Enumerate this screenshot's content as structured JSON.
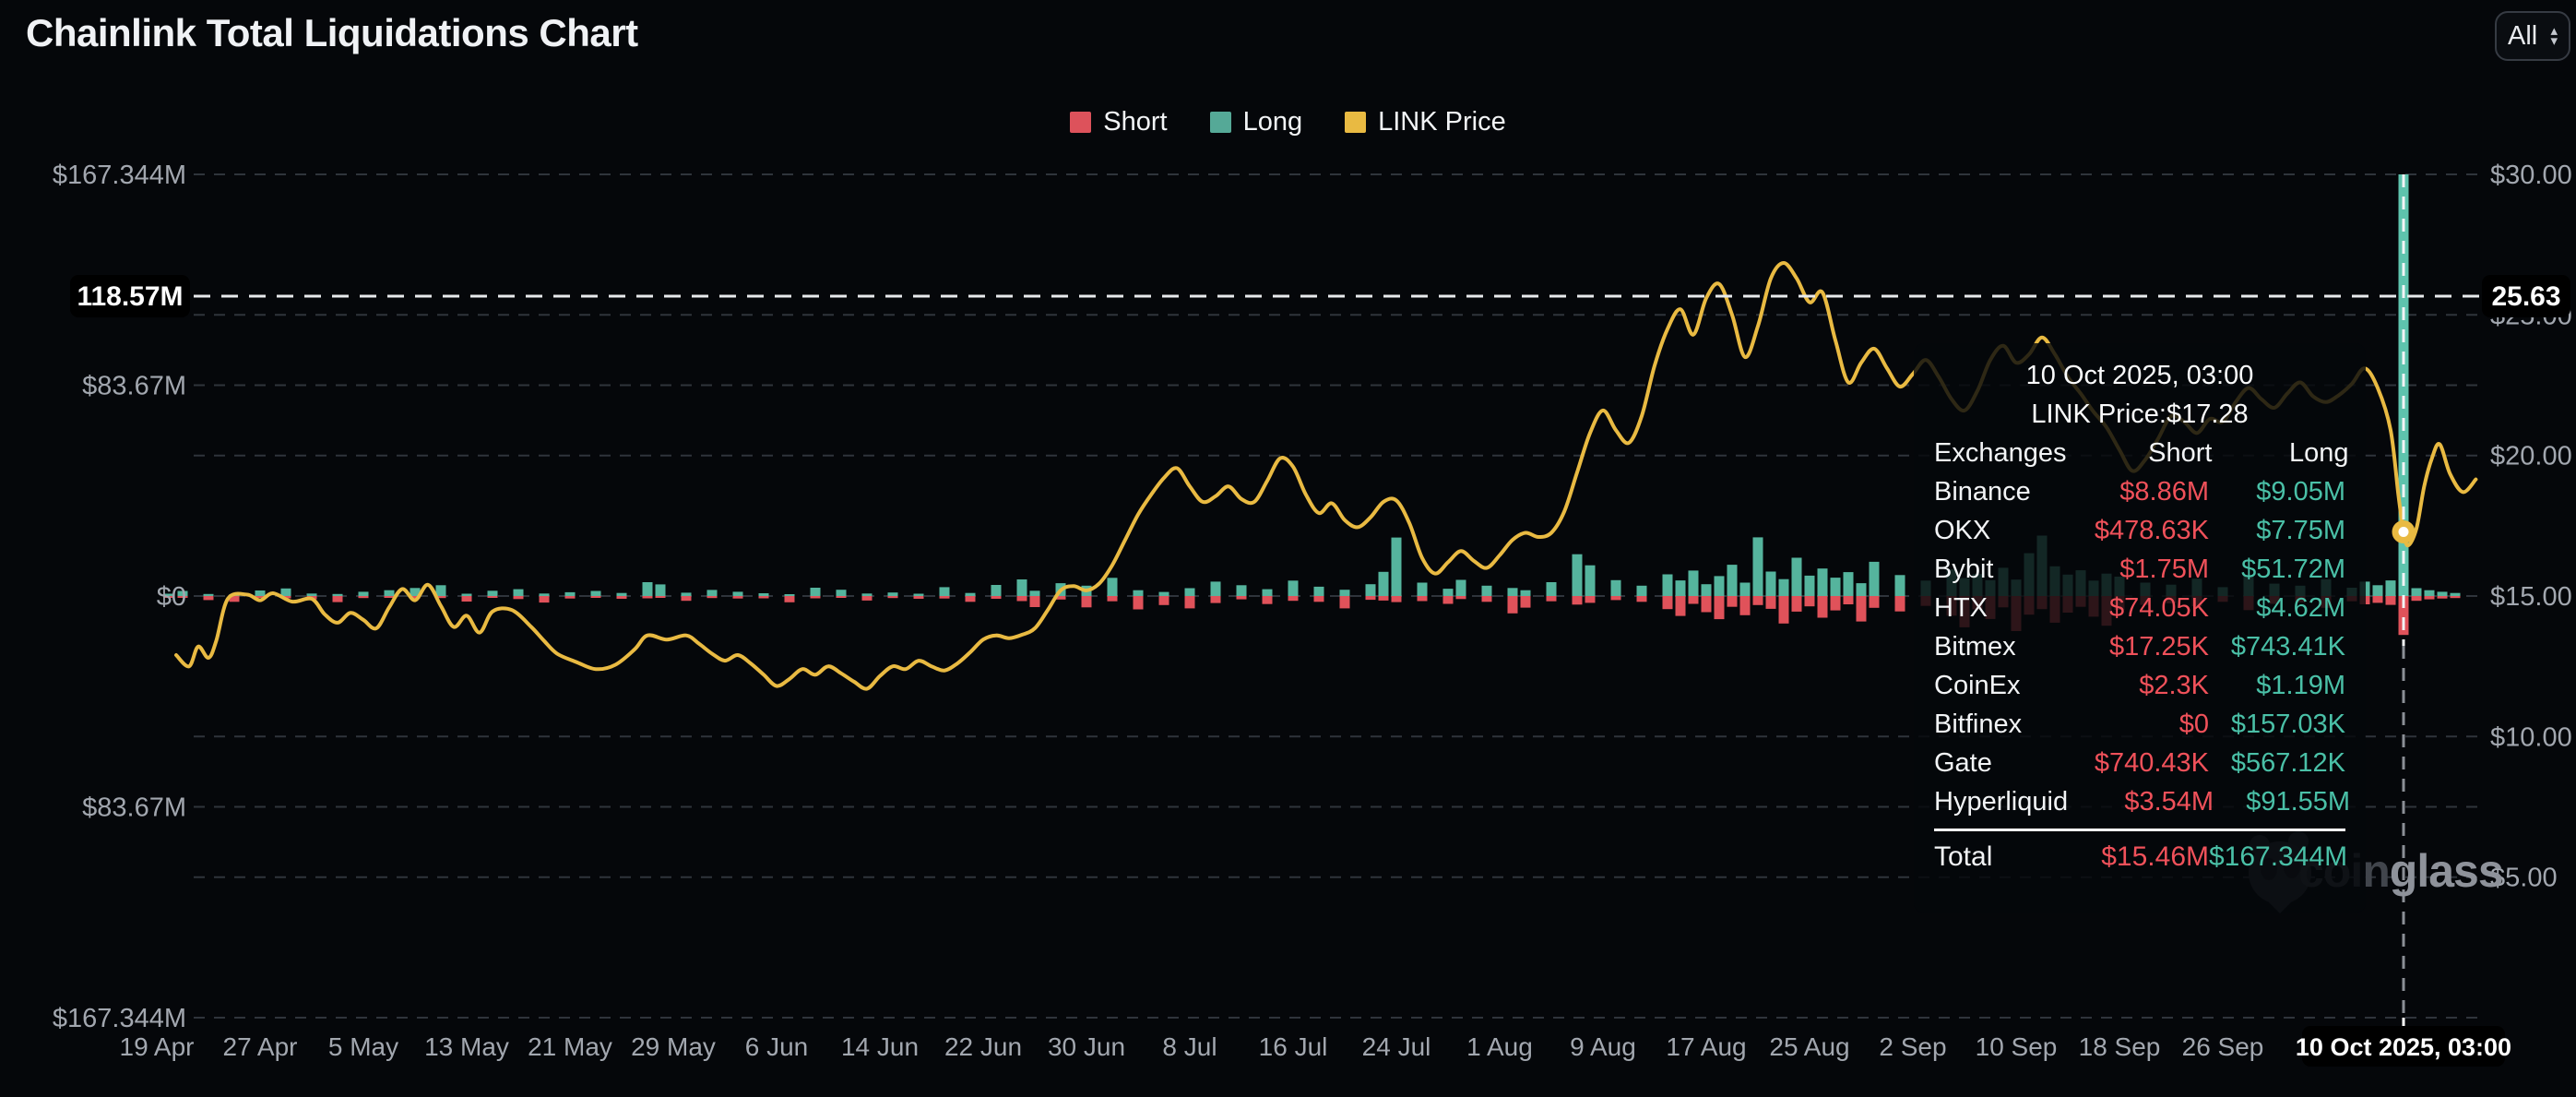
{
  "page": {
    "title": "Chainlink Total Liquidations Chart"
  },
  "controls": {
    "range_selector": "All"
  },
  "legend": [
    {
      "label": "Short",
      "color": "#dd525b"
    },
    {
      "label": "Long",
      "color": "#55a997"
    },
    {
      "label": "LINK Price",
      "color": "#e9ba42"
    }
  ],
  "watermark": {
    "prefix": "coin",
    "suffix": "glass"
  },
  "tooltip": {
    "date": "10 Oct 2025, 03:00",
    "price_line": "LINK Price:$17.28",
    "columns": [
      "Exchanges",
      "Short",
      "Long"
    ],
    "rows": [
      [
        "Binance",
        "$8.86M",
        "$9.05M"
      ],
      [
        "OKX",
        "$478.63K",
        "$7.75M"
      ],
      [
        "Bybit",
        "$1.75M",
        "$51.72M"
      ],
      [
        "HTX",
        "$74.05K",
        "$4.62M"
      ],
      [
        "Bitmex",
        "$17.25K",
        "$743.41K"
      ],
      [
        "CoinEx",
        "$2.3K",
        "$1.19M"
      ],
      [
        "Bitfinex",
        "$0",
        "$157.03K"
      ],
      [
        "Gate",
        "$740.43K",
        "$567.12K"
      ],
      [
        "Hyperliquid",
        "$3.54M",
        "$91.55M"
      ]
    ],
    "total": {
      "label": "Total",
      "short": "$15.46M",
      "long": "$167.344M"
    }
  },
  "crosshair": {
    "x_label": "10 Oct 2025, 03:00",
    "left_label": "118.57M",
    "right_label": "25.63",
    "day_index": 174,
    "price": 17.28
  },
  "chart_data": {
    "type": "mixed",
    "title": "Chainlink Total Liquidations Chart",
    "legend_position": "top-center",
    "grid": "dashed-horizontal",
    "left_axis": {
      "unit": "liquidations USD",
      "ticks": [
        "$167.344M",
        "$83.67M",
        "$0",
        "$83.67M",
        "$167.344M"
      ],
      "values_m": [
        167.344,
        83.67,
        0,
        -83.67,
        -167.344
      ]
    },
    "right_axis": {
      "unit": "LINK price USD",
      "ticks": [
        "$30.00",
        "$25.00",
        "$20.00",
        "$15.00",
        "$10.00",
        "$5.00"
      ],
      "values": [
        30,
        25,
        20,
        15,
        10,
        5
      ],
      "range": [
        0,
        30
      ]
    },
    "x_ticks": [
      "19 Apr",
      "27 Apr",
      "5 May",
      "13 May",
      "21 May",
      "29 May",
      "6 Jun",
      "14 Jun",
      "22 Jun",
      "30 Jun",
      "8 Jul",
      "16 Jul",
      "24 Jul",
      "1 Aug",
      "9 Aug",
      "17 Aug",
      "25 Aug",
      "2 Sep",
      "10 Sep",
      "18 Sep",
      "26 Sep"
    ],
    "days_per_tick": 8,
    "x_day0_date": "19 Apr 2025",
    "highlight_point": {
      "day": 174,
      "date": "10 Oct 2025, 03:00",
      "link_price": 17.28,
      "total_short_m": 15.46,
      "total_long_m": 167.344
    },
    "bars_format": "[day_index, short_$M_down, long_$M_up] approximate values read from chart",
    "bars": [
      [
        1,
        0.4,
        0.9
      ],
      [
        2,
        0.6,
        2.0
      ],
      [
        4,
        1.6,
        0.8
      ],
      [
        6,
        2.3,
        0.7
      ],
      [
        8,
        0.5,
        2.2
      ],
      [
        10,
        0.9,
        3.0
      ],
      [
        12,
        1.3,
        1.0
      ],
      [
        14,
        2.4,
        0.8
      ],
      [
        16,
        0.8,
        1.7
      ],
      [
        18,
        0.5,
        2.3
      ],
      [
        20,
        1.0,
        3.2
      ],
      [
        22,
        0.8,
        4.3
      ],
      [
        24,
        2.2,
        0.9
      ],
      [
        26,
        0.6,
        2.1
      ],
      [
        28,
        1.2,
        2.7
      ],
      [
        30,
        2.6,
        1.0
      ],
      [
        32,
        1.0,
        1.5
      ],
      [
        34,
        0.7,
        2.0
      ],
      [
        36,
        1.1,
        1.2
      ],
      [
        38,
        0.9,
        5.5
      ],
      [
        39,
        0.6,
        4.6
      ],
      [
        41,
        1.9,
        1.3
      ],
      [
        43,
        0.8,
        2.4
      ],
      [
        45,
        1.0,
        1.7
      ],
      [
        47,
        0.9,
        1.1
      ],
      [
        49,
        2.5,
        0.7
      ],
      [
        51,
        0.9,
        3.3
      ],
      [
        53,
        0.7,
        2.5
      ],
      [
        55,
        1.8,
        1.0
      ],
      [
        57,
        0.8,
        1.4
      ],
      [
        59,
        1.1,
        0.9
      ],
      [
        61,
        1.0,
        3.5
      ],
      [
        63,
        2.3,
        1.2
      ],
      [
        65,
        1.1,
        4.4
      ],
      [
        67,
        2.0,
        6.6
      ],
      [
        68,
        4.4,
        2.1
      ],
      [
        70,
        1.4,
        5.1
      ],
      [
        72,
        4.5,
        4.1
      ],
      [
        74,
        2.1,
        7.2
      ],
      [
        76,
        5.3,
        2.3
      ],
      [
        78,
        3.6,
        1.6
      ],
      [
        80,
        4.9,
        3.1
      ],
      [
        82,
        2.8,
        5.7
      ],
      [
        84,
        1.3,
        4.3
      ],
      [
        86,
        3.2,
        2.7
      ],
      [
        88,
        1.9,
        6.1
      ],
      [
        90,
        2.3,
        3.7
      ],
      [
        92,
        4.9,
        2.5
      ],
      [
        94,
        1.5,
        4.7
      ],
      [
        95,
        1.8,
        9.6
      ],
      [
        96,
        2.4,
        23.2
      ],
      [
        98,
        2.0,
        5.3
      ],
      [
        100,
        3.1,
        2.9
      ],
      [
        101,
        1.2,
        6.4
      ],
      [
        103,
        2.3,
        4.1
      ],
      [
        105,
        6.9,
        3.2
      ],
      [
        106,
        4.6,
        2.3
      ],
      [
        108,
        2.1,
        5.5
      ],
      [
        110,
        3.4,
        16.6
      ],
      [
        111,
        2.7,
        12.2
      ],
      [
        113,
        1.6,
        6.3
      ],
      [
        115,
        2.3,
        4.1
      ],
      [
        117,
        5.2,
        8.6
      ],
      [
        118,
        7.9,
        6.2
      ],
      [
        119,
        3.1,
        10.1
      ],
      [
        120,
        6.4,
        4.7
      ],
      [
        121,
        9.2,
        7.9
      ],
      [
        122,
        4.3,
        12.4
      ],
      [
        123,
        7.6,
        5.3
      ],
      [
        124,
        3.6,
        23.3
      ],
      [
        125,
        5.1,
        9.7
      ],
      [
        126,
        10.9,
        6.7
      ],
      [
        127,
        6.2,
        15.2
      ],
      [
        128,
        4.1,
        8.1
      ],
      [
        129,
        8.6,
        10.9
      ],
      [
        130,
        5.7,
        7.3
      ],
      [
        131,
        3.3,
        9.5
      ],
      [
        132,
        10.1,
        5.1
      ],
      [
        133,
        4.7,
        13.6
      ],
      [
        135,
        6.1,
        8.3
      ],
      [
        137,
        3.9,
        6.1
      ],
      [
        139,
        7.8,
        10.6
      ],
      [
        140,
        12.4,
        7.1
      ],
      [
        141,
        5.3,
        8.7
      ],
      [
        142,
        9.1,
        6.3
      ],
      [
        143,
        4.5,
        11.2
      ],
      [
        144,
        13.9,
        6.5
      ],
      [
        145,
        7.4,
        17.0
      ],
      [
        146,
        5.2,
        24.0
      ],
      [
        147,
        10.6,
        11.8
      ],
      [
        148,
        6.6,
        8.5
      ],
      [
        149,
        4.3,
        10.2
      ],
      [
        150,
        8.2,
        6.1
      ],
      [
        151,
        11.8,
        8.9
      ],
      [
        152,
        5.5,
        7.7
      ],
      [
        154,
        3.5,
        5.3
      ],
      [
        156,
        2.9,
        4.5
      ],
      [
        158,
        4.1,
        6.9
      ],
      [
        160,
        2.3,
        3.5
      ],
      [
        162,
        5.6,
        8.1
      ],
      [
        164,
        3.1,
        4.9
      ],
      [
        166,
        2.5,
        4.1
      ],
      [
        168,
        4.7,
        6.7
      ],
      [
        170,
        2.1,
        3.3
      ],
      [
        171,
        3.3,
        5.7
      ],
      [
        172,
        2.7,
        4.3
      ],
      [
        173,
        3.5,
        6.2
      ],
      [
        174,
        15.46,
        167.344
      ],
      [
        175,
        1.9,
        3.1
      ],
      [
        176,
        1.3,
        2.3
      ],
      [
        177,
        1.0,
        1.7
      ],
      [
        178,
        0.8,
        1.2
      ]
    ],
    "link_price_format": "[day_index, price_$] approximate samples of the yellow line",
    "link_price": [
      [
        1.5,
        12.9
      ],
      [
        2.5,
        12.5
      ],
      [
        3.2,
        13.2
      ],
      [
        4,
        12.8
      ],
      [
        4.6,
        13.4
      ],
      [
        5.5,
        14.9
      ],
      [
        7,
        15.05
      ],
      [
        8,
        14.85
      ],
      [
        9,
        15.1
      ],
      [
        10.5,
        14.8
      ],
      [
        12,
        14.9
      ],
      [
        13,
        14.35
      ],
      [
        14,
        14.05
      ],
      [
        15,
        14.4
      ],
      [
        16,
        14.15
      ],
      [
        17,
        13.85
      ],
      [
        18,
        14.6
      ],
      [
        19,
        15.25
      ],
      [
        20,
        14.85
      ],
      [
        21,
        15.4
      ],
      [
        22,
        14.65
      ],
      [
        23,
        13.9
      ],
      [
        24,
        14.3
      ],
      [
        25,
        13.7
      ],
      [
        26,
        14.45
      ],
      [
        27.5,
        14.5
      ],
      [
        29,
        13.9
      ],
      [
        30,
        13.4
      ],
      [
        31,
        12.95
      ],
      [
        32.5,
        12.65
      ],
      [
        34,
        12.4
      ],
      [
        35.5,
        12.55
      ],
      [
        37,
        13.1
      ],
      [
        38,
        13.6
      ],
      [
        39.5,
        13.45
      ],
      [
        41,
        13.6
      ],
      [
        42,
        13.3
      ],
      [
        43,
        12.95
      ],
      [
        44,
        12.7
      ],
      [
        45,
        12.9
      ],
      [
        46,
        12.6
      ],
      [
        47,
        12.2
      ],
      [
        48,
        11.8
      ],
      [
        49,
        12.05
      ],
      [
        50,
        12.4
      ],
      [
        51,
        12.2
      ],
      [
        52,
        12.5
      ],
      [
        53,
        12.25
      ],
      [
        54,
        11.95
      ],
      [
        55,
        11.7
      ],
      [
        56,
        12.15
      ],
      [
        57,
        12.5
      ],
      [
        58,
        12.4
      ],
      [
        59,
        12.7
      ],
      [
        60,
        12.5
      ],
      [
        61,
        12.35
      ],
      [
        62,
        12.6
      ],
      [
        63,
        13.0
      ],
      [
        64,
        13.45
      ],
      [
        65,
        13.6
      ],
      [
        66,
        13.5
      ],
      [
        67,
        13.62
      ],
      [
        68,
        13.85
      ],
      [
        69,
        14.5
      ],
      [
        70,
        15.2
      ],
      [
        71,
        15.35
      ],
      [
        72,
        15.2
      ],
      [
        73,
        15.45
      ],
      [
        74,
        16.1
      ],
      [
        75,
        17.0
      ],
      [
        76,
        17.9
      ],
      [
        77,
        18.6
      ],
      [
        78,
        19.2
      ],
      [
        79,
        19.55
      ],
      [
        80,
        18.9
      ],
      [
        81,
        18.35
      ],
      [
        82,
        18.55
      ],
      [
        83,
        18.9
      ],
      [
        84,
        18.45
      ],
      [
        85,
        18.35
      ],
      [
        86,
        19.1
      ],
      [
        87,
        19.9
      ],
      [
        88,
        19.6
      ],
      [
        89,
        18.6
      ],
      [
        90,
        17.95
      ],
      [
        91,
        18.3
      ],
      [
        92,
        17.7
      ],
      [
        93,
        17.45
      ],
      [
        94,
        17.8
      ],
      [
        95,
        18.35
      ],
      [
        96,
        18.4
      ],
      [
        97,
        17.6
      ],
      [
        98,
        16.35
      ],
      [
        99,
        15.8
      ],
      [
        100,
        16.2
      ],
      [
        101,
        16.6
      ],
      [
        102,
        16.25
      ],
      [
        103,
        16.0
      ],
      [
        104,
        16.45
      ],
      [
        105,
        17.0
      ],
      [
        106,
        17.25
      ],
      [
        107,
        17.1
      ],
      [
        108,
        17.25
      ],
      [
        109,
        18.0
      ],
      [
        110,
        19.4
      ],
      [
        111,
        20.8
      ],
      [
        112,
        21.6
      ],
      [
        113,
        20.9
      ],
      [
        114,
        20.45
      ],
      [
        115,
        21.4
      ],
      [
        116,
        23.2
      ],
      [
        117,
        24.5
      ],
      [
        118,
        25.2
      ],
      [
        119,
        24.3
      ],
      [
        120,
        25.6
      ],
      [
        121,
        26.1
      ],
      [
        122,
        25.0
      ],
      [
        123,
        23.5
      ],
      [
        124,
        24.6
      ],
      [
        125,
        26.3
      ],
      [
        126,
        26.85
      ],
      [
        127,
        26.3
      ],
      [
        128,
        25.45
      ],
      [
        129,
        25.8
      ],
      [
        130,
        24.1
      ],
      [
        131,
        22.6
      ],
      [
        132,
        23.3
      ],
      [
        133,
        23.8
      ],
      [
        134,
        23.1
      ],
      [
        135,
        22.45
      ],
      [
        136,
        22.9
      ],
      [
        137,
        23.4
      ],
      [
        138,
        22.8
      ],
      [
        139,
        22.0
      ],
      [
        140,
        21.6
      ],
      [
        141,
        22.3
      ],
      [
        142,
        23.4
      ],
      [
        143,
        23.9
      ],
      [
        144,
        23.3
      ],
      [
        145,
        23.6
      ],
      [
        146,
        24.2
      ],
      [
        147,
        23.6
      ],
      [
        148,
        22.8
      ],
      [
        149,
        22.2
      ],
      [
        150,
        21.55
      ],
      [
        151,
        21.0
      ],
      [
        152,
        20.2
      ],
      [
        153,
        19.45
      ],
      [
        154,
        19.85
      ],
      [
        155,
        20.6
      ],
      [
        156,
        21.4
      ],
      [
        157,
        21.2
      ],
      [
        158,
        20.8
      ],
      [
        159,
        21.3
      ],
      [
        160,
        21.2
      ],
      [
        161,
        21.9
      ],
      [
        162,
        22.4
      ],
      [
        163,
        22.0
      ],
      [
        164,
        21.7
      ],
      [
        165,
        22.2
      ],
      [
        166,
        22.6
      ],
      [
        167,
        22.1
      ],
      [
        168,
        21.9
      ],
      [
        169,
        22.15
      ],
      [
        170,
        22.55
      ],
      [
        171,
        23.1
      ],
      [
        172,
        22.4
      ],
      [
        173,
        20.9
      ],
      [
        173.6,
        18.6
      ],
      [
        174,
        17.28
      ],
      [
        174.35,
        16.8
      ],
      [
        175,
        17.4
      ],
      [
        175.6,
        18.9
      ],
      [
        176.2,
        19.9
      ],
      [
        176.8,
        20.4
      ],
      [
        177.6,
        19.35
      ],
      [
        178.6,
        18.7
      ],
      [
        179.6,
        19.15
      ]
    ],
    "colors": {
      "short": "#e0525a",
      "long": "#55b49d",
      "long_spike": "#5ec3ad",
      "link_price": "#e9ba42",
      "grid": "#2f343b",
      "axis_text": "#a2a7af",
      "crosshair": "#e8eaec",
      "chip_bg": "#000000",
      "chip_text": "#ffffff"
    }
  }
}
